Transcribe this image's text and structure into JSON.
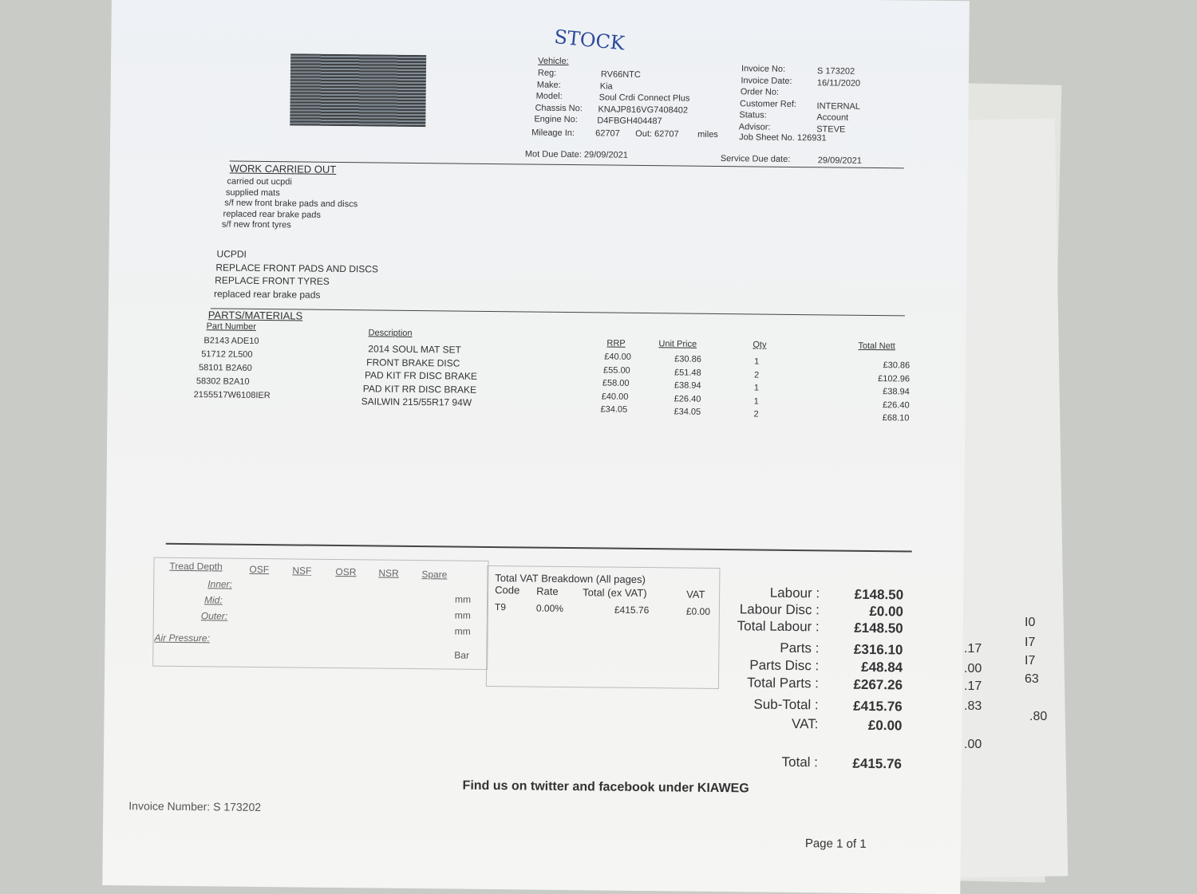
{
  "handwritten_note": "STOCK",
  "vehicle": {
    "heading": "Vehicle:",
    "rows": [
      [
        "Reg:",
        "RV66NTC"
      ],
      [
        "Make:",
        "Kia"
      ],
      [
        "Model:",
        "Soul Crdi Connect Plus"
      ],
      [
        "Chassis No:",
        "KNAJP816VG7408402"
      ],
      [
        "Engine No:",
        "D4FBGH404487"
      ]
    ],
    "mileage_label": "Mileage In:",
    "mileage_in": "62707",
    "mileage_out_label": "Out: 62707",
    "miles": "miles"
  },
  "invoice": {
    "rows": [
      [
        "Invoice No:",
        "S 173202"
      ],
      [
        "Invoice Date:",
        "16/11/2020"
      ],
      [
        "Order No:",
        ""
      ],
      [
        "Customer Ref:",
        "INTERNAL"
      ],
      [
        "Status:",
        "Account"
      ],
      [
        "Advisor:",
        "STEVE"
      ]
    ],
    "job_sheet": "Job Sheet No. 126931"
  },
  "mot_due": "Mot Due Date: 29/09/2021",
  "service_due_label": "Service Due date:",
  "service_due": "29/09/2021",
  "work": {
    "heading": "WORK CARRIED OUT",
    "lines": [
      "carried out ucpdi",
      "supplied mats",
      "s/f new front brake pads and discs",
      "replaced rear brake pads",
      "s/f new front tyres"
    ],
    "summary": [
      "UCPDI",
      "REPLACE FRONT PADS AND DISCS",
      "REPLACE FRONT TYRES",
      "replaced rear brake pads"
    ]
  },
  "parts": {
    "heading": "PARTS/MATERIALS",
    "columns": [
      "Part Number",
      "Description",
      "RRP",
      "Unit Price",
      "Qty",
      "Total Nett"
    ],
    "rows": [
      [
        "B2143 ADE10",
        "2014 SOUL MAT SET",
        "£40.00",
        "£30.86",
        "1",
        "£30.86"
      ],
      [
        "51712 2L500",
        "FRONT BRAKE DISC",
        "£55.00",
        "£51.48",
        "2",
        "£102.96"
      ],
      [
        "58101 B2A60",
        "PAD KIT FR DISC BRAKE",
        "£58.00",
        "£38.94",
        "1",
        "£38.94"
      ],
      [
        "58302 B2A10",
        "PAD KIT RR DISC BRAKE",
        "£40.00",
        "£26.40",
        "1",
        "£26.40"
      ],
      [
        "2155517W6108IER",
        "SAILWIN 215/55R17 94W",
        "£34.05",
        "£34.05",
        "2",
        "£68.10"
      ]
    ]
  },
  "tread": {
    "heading": "Tread Depth",
    "cols": [
      "OSF",
      "NSF",
      "OSR",
      "NSR",
      "Spare"
    ],
    "rows": [
      "Inner:",
      "Mid:",
      "Outer:"
    ],
    "units": [
      "mm",
      "mm",
      "mm",
      "Bar"
    ],
    "air": "Air Pressure:"
  },
  "vat": {
    "heading": "Total VAT Breakdown (All pages)",
    "cols": [
      "Code",
      "Rate",
      "Total (ex VAT)",
      "VAT"
    ],
    "row": [
      "T9",
      "0.00%",
      "£415.76",
      "£0.00"
    ]
  },
  "totals": [
    [
      "Labour :",
      "£148.50"
    ],
    [
      "Labour Disc :",
      "£0.00"
    ],
    [
      "Total Labour :",
      "£148.50"
    ],
    [
      "Parts :",
      "£316.10"
    ],
    [
      "Parts Disc :",
      "£48.84"
    ],
    [
      "Total Parts :",
      "£267.26"
    ],
    [
      "Sub-Total :",
      "£415.76"
    ],
    [
      "VAT:",
      "£0.00"
    ],
    [
      "Total :",
      "£415.76"
    ]
  ],
  "footer": {
    "social": "Find us on twitter and facebook under KIAWEG",
    "invoice_number": "Invoice Number: S 173202",
    "page": "Page  1 of 1"
  },
  "background_stubs": [
    ".17",
    ".00",
    ".17",
    ".83",
    ".00",
    "I0",
    "I7",
    "I7",
    "63",
    ".80"
  ]
}
